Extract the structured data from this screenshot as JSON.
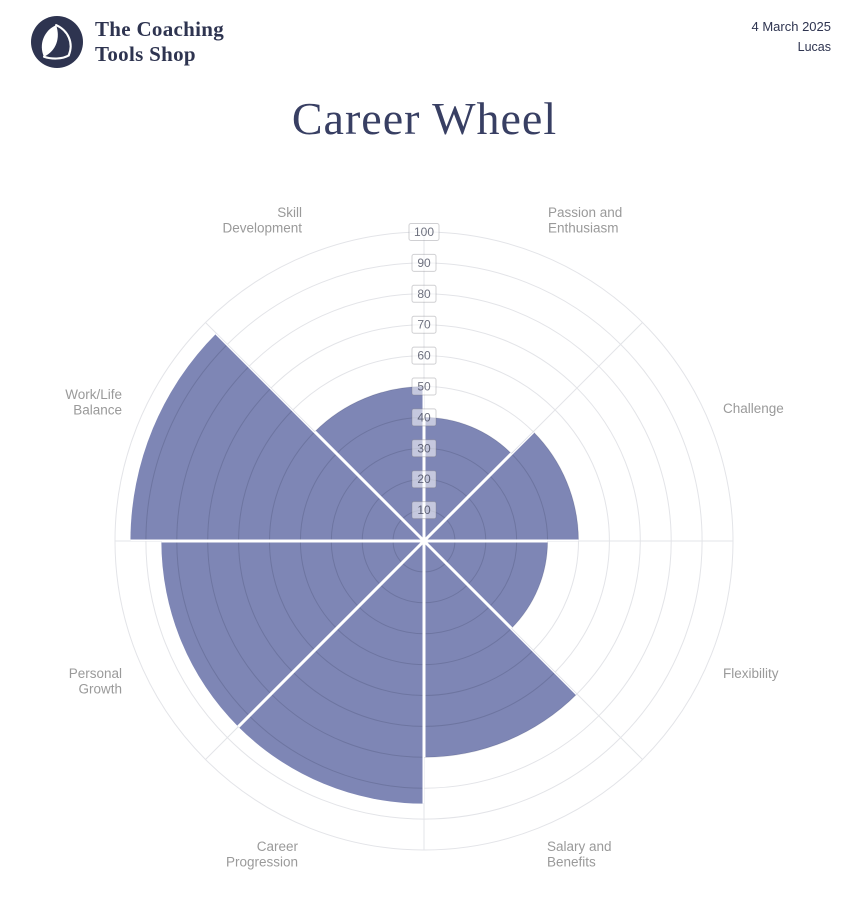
{
  "header": {
    "brand": {
      "line1": "The Coaching",
      "line2": "Tools Shop"
    },
    "date": "4 March 2025",
    "client_name": "Lucas"
  },
  "title": "Career Wheel",
  "colors": {
    "navy": "#2e3450",
    "title": "#383f63",
    "wedge_fill": "#7e86b5",
    "wedge_grid_overlay": "rgba(47,52,80,0.20)",
    "grid": "#e3e4e8",
    "category_label": "#9a9a9a",
    "tick_text": "rgba(42,46,66,0.68)",
    "tick_box_fill": "rgba(255,255,255,0.55)",
    "tick_box_border": "rgba(120,120,130,0.35)"
  },
  "chart_data": {
    "type": "polar_area",
    "title": "Career Wheel",
    "categories": [
      "Passion and Enthusiasm",
      "Challenge",
      "Flexibility",
      "Salary and Benefits",
      "Career Progression",
      "Personal Growth",
      "Work/Life Balance",
      "Skill Development"
    ],
    "values": [
      40,
      50,
      40,
      70,
      85,
      85,
      95,
      50
    ],
    "sector_angle_deg": 45,
    "start_angle": "north",
    "direction": "clockwise",
    "radial_axis": {
      "min": 0,
      "max": 100,
      "tick_step": 10,
      "ticks": [
        10,
        20,
        30,
        40,
        50,
        60,
        70,
        80,
        90,
        100
      ]
    },
    "grid": true,
    "legend": false
  }
}
